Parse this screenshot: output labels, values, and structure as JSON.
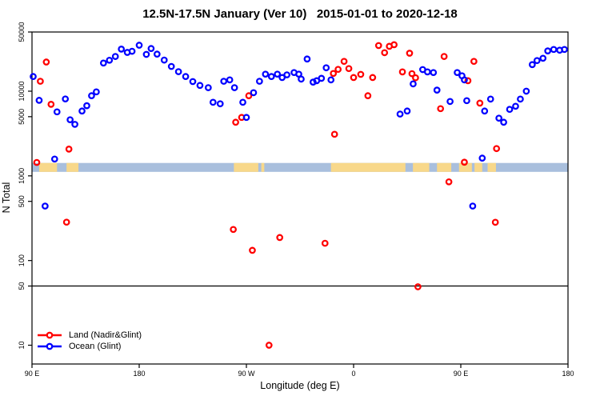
{
  "title": "12.5N-17.5N January (Ver 10)   2015-01-01 to 2020-12-18",
  "chart_data": {
    "type": "scatter",
    "title": "12.5N-17.5N January (Ver 10)   2015-01-01 to 2020-12-18",
    "xlabel": "Longitude (deg E)",
    "ylabel": "N Total",
    "x_axis": {
      "min": -270,
      "max": 180,
      "ticks": [
        {
          "value": -270,
          "label": "90 E"
        },
        {
          "value": -180,
          "label": "180"
        },
        {
          "value": -90,
          "label": "90 W"
        },
        {
          "value": 0,
          "label": "0"
        },
        {
          "value": 90,
          "label": "90 E"
        },
        {
          "value": 180,
          "label": "180"
        }
      ]
    },
    "y_axis": {
      "scale": "log",
      "min": 6,
      "max": 50000,
      "ticks": [
        {
          "value": 50000,
          "label": "50000"
        },
        {
          "value": 10000,
          "label": "10000"
        },
        {
          "value": 5000,
          "label": "5000"
        },
        {
          "value": 1000,
          "label": "1000"
        },
        {
          "value": 500,
          "label": "500"
        },
        {
          "value": 100,
          "label": "100"
        },
        {
          "value": 50,
          "label": "50"
        },
        {
          "value": 10,
          "label": "10"
        }
      ]
    },
    "reference_line_y": 50,
    "map_band": {
      "value_top": 1420,
      "value_bottom": 1115,
      "ocean_color": "#a9bfdd",
      "land_color": "#f8d88a",
      "land_segments_lon": [
        [
          -264,
          -249
        ],
        [
          -241,
          -231
        ],
        [
          -100.5,
          -80
        ],
        [
          -77.5,
          -75
        ],
        [
          -19,
          43.5
        ],
        [
          49.8,
          63.5
        ],
        [
          70,
          82
        ],
        [
          88.5,
          99.3
        ],
        [
          101.5,
          108
        ],
        [
          112.5,
          119.5
        ]
      ]
    },
    "legend_position": "bottom-left",
    "series": [
      {
        "name": "Land (Nadir&Glint)",
        "color": "#ff0000",
        "points": [
          [
            -266,
            1440
          ],
          [
            -263,
            13100
          ],
          [
            -258,
            22100
          ],
          [
            -254,
            7000
          ],
          [
            -241,
            284
          ],
          [
            -239,
            2070
          ],
          [
            -101,
            233
          ],
          [
            -99,
            4300
          ],
          [
            -94,
            4900
          ],
          [
            -88,
            8840
          ],
          [
            -85,
            132
          ],
          [
            -71,
            10
          ],
          [
            -62,
            187
          ],
          [
            -24,
            160
          ],
          [
            -17,
            16200
          ],
          [
            -16,
            3100
          ],
          [
            -13,
            18100
          ],
          [
            -8,
            22500
          ],
          [
            -4,
            18500
          ],
          [
            0,
            14500
          ],
          [
            6,
            15800
          ],
          [
            12,
            8840
          ],
          [
            16,
            14500
          ],
          [
            21,
            34600
          ],
          [
            26,
            28500
          ],
          [
            30,
            33900
          ],
          [
            34,
            35400
          ],
          [
            41,
            16900
          ],
          [
            47,
            28100
          ],
          [
            49,
            16100
          ],
          [
            52,
            14400
          ],
          [
            54,
            49
          ],
          [
            73,
            6220
          ],
          [
            76,
            25700
          ],
          [
            80,
            850
          ],
          [
            93,
            1450
          ],
          [
            96,
            13300
          ],
          [
            101,
            22500
          ],
          [
            106,
            7230
          ],
          [
            119,
            283
          ],
          [
            120,
            2100
          ]
        ]
      },
      {
        "name": "Ocean (Glint)",
        "color": "#0000ff",
        "points": [
          [
            -269,
            14900
          ],
          [
            -264,
            7800
          ],
          [
            -259,
            440
          ],
          [
            -251,
            1580
          ],
          [
            -249,
            5700
          ],
          [
            -242,
            8100
          ],
          [
            -238,
            4600
          ],
          [
            -234,
            4060
          ],
          [
            -228,
            5830
          ],
          [
            -224,
            6740
          ],
          [
            -220,
            8840
          ],
          [
            -216,
            9820
          ],
          [
            -210,
            21500
          ],
          [
            -205,
            23200
          ],
          [
            -200,
            25700
          ],
          [
            -195,
            31400
          ],
          [
            -190,
            28700
          ],
          [
            -186,
            29600
          ],
          [
            -180,
            34900
          ],
          [
            -174,
            27200
          ],
          [
            -170,
            31900
          ],
          [
            -165,
            27400
          ],
          [
            -159,
            23300
          ],
          [
            -153,
            19600
          ],
          [
            -147,
            17000
          ],
          [
            -141,
            14900
          ],
          [
            -135,
            13000
          ],
          [
            -129,
            11700
          ],
          [
            -122,
            11000
          ],
          [
            -118,
            7400
          ],
          [
            -112,
            7100
          ],
          [
            -109,
            13100
          ],
          [
            -104,
            13600
          ],
          [
            -100,
            11000
          ],
          [
            -93,
            7400
          ],
          [
            -90,
            4900
          ],
          [
            -84,
            9600
          ],
          [
            -79,
            13100
          ],
          [
            -74,
            15900
          ],
          [
            -69,
            14900
          ],
          [
            -64,
            15900
          ],
          [
            -60,
            14500
          ],
          [
            -56,
            15600
          ],
          [
            -50,
            16600
          ],
          [
            -46,
            15900
          ],
          [
            -44,
            13900
          ],
          [
            -39,
            24000
          ],
          [
            -34,
            12800
          ],
          [
            -31,
            13300
          ],
          [
            -27,
            14200
          ],
          [
            -23,
            18900
          ],
          [
            -19,
            13600
          ],
          [
            39,
            5370
          ],
          [
            45,
            5830
          ],
          [
            50,
            12200
          ],
          [
            58,
            18000
          ],
          [
            62,
            16900
          ],
          [
            67,
            16600
          ],
          [
            70,
            10300
          ],
          [
            81,
            7560
          ],
          [
            87,
            16600
          ],
          [
            91,
            15200
          ],
          [
            93,
            13600
          ],
          [
            95,
            7730
          ],
          [
            100,
            440
          ],
          [
            108,
            1620
          ],
          [
            110,
            5830
          ],
          [
            115,
            8070
          ],
          [
            122,
            4800
          ],
          [
            126,
            4300
          ],
          [
            131,
            6100
          ],
          [
            136,
            6640
          ],
          [
            140,
            8070
          ],
          [
            145,
            10000
          ],
          [
            150,
            20600
          ],
          [
            154,
            23000
          ],
          [
            159,
            24500
          ],
          [
            163,
            29900
          ],
          [
            168,
            31100
          ],
          [
            173,
            30500
          ],
          [
            177,
            31100
          ]
        ]
      }
    ]
  }
}
